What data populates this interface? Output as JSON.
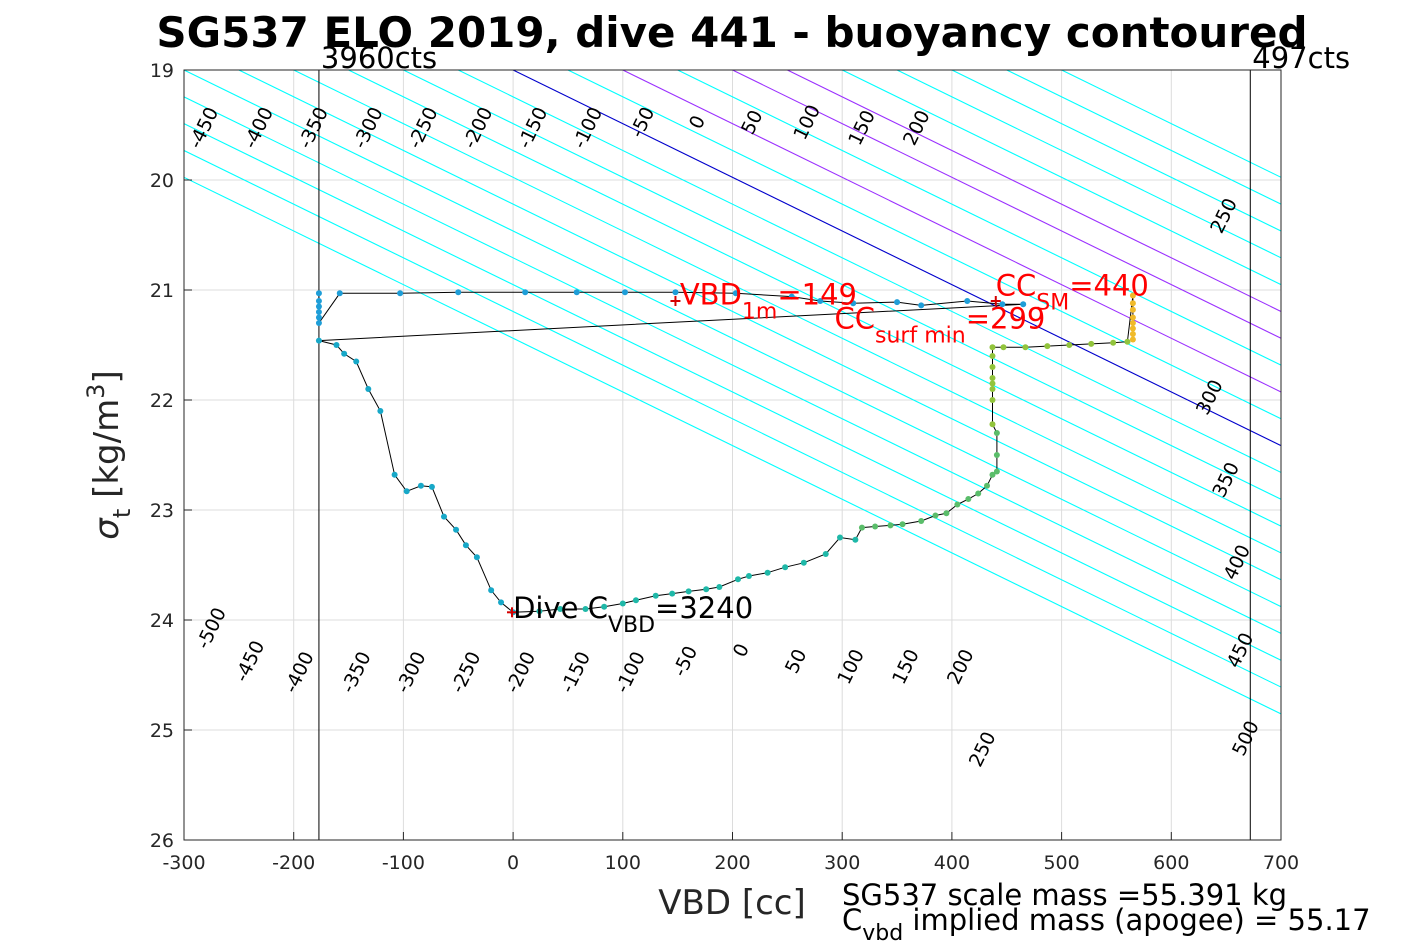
{
  "chart_data": {
    "type": "scatter",
    "title": "SG537 ELO 2019, dive 441 - buoyancy contoured",
    "xlabel": "VBD [cc]",
    "ylabel": {
      "base": "σ",
      "sub": "t",
      "unit_pre": " [kg/m",
      "unit_sup": "3",
      "unit_post": "]"
    },
    "xlim": [
      -300,
      700
    ],
    "ylim": [
      19,
      26
    ],
    "y_reversed": true,
    "grid": true,
    "xticks": [
      "-300",
      "-200",
      "-100",
      "0",
      "100",
      "200",
      "300",
      "400",
      "500",
      "600",
      "700"
    ],
    "yticks": [
      "19",
      "20",
      "21",
      "22",
      "23",
      "24",
      "25",
      "26"
    ],
    "vlines": [
      {
        "x": -177,
        "label": "3960cts",
        "color": "#000000"
      },
      {
        "x": 672,
        "label": "497cts",
        "color": "#000000"
      }
    ],
    "contour_slope_vbd_per_sigma": 205,
    "contours": [
      {
        "b": -500,
        "label": "-500",
        "color": "#00ffff",
        "label_at": [
          -270,
          24.1
        ]
      },
      {
        "b": -450,
        "label": "-450",
        "color": "#00ffff",
        "label_at": [
          -235,
          24.4
        ]
      },
      {
        "b": -400,
        "label": "-400",
        "color": "#00ffff",
        "label_at": [
          -190,
          24.5
        ]
      },
      {
        "b": -350,
        "label": "-350",
        "color": "#00ffff",
        "label_at": [
          -138,
          24.5
        ]
      },
      {
        "b": -300,
        "label": "-300",
        "color": "#00ffff",
        "label_at": [
          -88,
          24.5
        ]
      },
      {
        "b": -250,
        "label": "-250",
        "color": "#00ffff",
        "label_at": [
          -38,
          24.5
        ]
      },
      {
        "b": -200,
        "label": "-200",
        "color": "#00ffff",
        "label_at": [
          12,
          24.5
        ]
      },
      {
        "b": -150,
        "label": "-150",
        "color": "#00ffff",
        "label_at": [
          62,
          24.5
        ]
      },
      {
        "b": -100,
        "label": "-100",
        "color": "#00ffff",
        "label_at": [
          112,
          24.5
        ]
      },
      {
        "b": -50,
        "label": "-50",
        "color": "#00ffff",
        "label_at": [
          162,
          24.4
        ]
      },
      {
        "b": 0,
        "label": "0",
        "color": "#0000cc",
        "label_at": [
          213,
          24.3
        ]
      },
      {
        "b": 50,
        "label": "50",
        "color": "#00ffff",
        "label_at": [
          263,
          24.4
        ]
      },
      {
        "b": 100,
        "label": "100",
        "color": "#9b30ff",
        "label_at": [
          313,
          24.45
        ]
      },
      {
        "b": 150,
        "label": "150",
        "color": "#00ffff",
        "label_at": [
          363,
          24.45
        ]
      },
      {
        "b": 200,
        "label": "200",
        "color": "#9b30ff",
        "label_at": [
          413,
          24.45
        ]
      },
      {
        "b": 250,
        "label": "250",
        "color": "#9b30ff",
        "label_at": [
          433,
          25.2
        ]
      },
      {
        "b": 300,
        "label": "300",
        "color": "#00ffff",
        "label_at": [
          640,
          22.0
        ]
      },
      {
        "b": 350,
        "label": "350",
        "color": "#00ffff",
        "label_at": [
          655,
          22.75
        ]
      },
      {
        "b": 400,
        "label": "400",
        "color": "#00ffff",
        "label_at": [
          665,
          23.5
        ]
      },
      {
        "b": 450,
        "label": "450",
        "color": "#00ffff",
        "label_at": [
          668,
          24.3
        ]
      },
      {
        "b": 500,
        "label": "500",
        "color": "#00ffff",
        "label_at": [
          673,
          25.1
        ]
      }
    ],
    "top_contour_labels": [
      {
        "label": "-450",
        "at": [
          -277,
          19.55
        ]
      },
      {
        "label": "-400",
        "at": [
          -227,
          19.55
        ]
      },
      {
        "label": "-350",
        "at": [
          -177,
          19.55
        ]
      },
      {
        "label": "-300",
        "at": [
          -127,
          19.55
        ]
      },
      {
        "label": "-250",
        "at": [
          -77,
          19.55
        ]
      },
      {
        "label": "-200",
        "at": [
          -27,
          19.55
        ]
      },
      {
        "label": "-150",
        "at": [
          23,
          19.55
        ]
      },
      {
        "label": "-100",
        "at": [
          73,
          19.55
        ]
      },
      {
        "label": "-50",
        "at": [
          123,
          19.5
        ]
      },
      {
        "label": "0",
        "at": [
          173,
          19.5
        ]
      },
      {
        "label": "50",
        "at": [
          223,
          19.5
        ]
      },
      {
        "label": "100",
        "at": [
          273,
          19.5
        ]
      },
      {
        "label": "150",
        "at": [
          323,
          19.55
        ]
      },
      {
        "label": "200",
        "at": [
          373,
          19.55
        ]
      },
      {
        "label": "250",
        "at": [
          653,
          20.35
        ]
      }
    ],
    "series": [
      {
        "color": "#1e9ed8",
        "points": [
          [
            -177,
            21.03
          ],
          [
            -177,
            21.1
          ],
          [
            -177,
            21.15
          ],
          [
            -177,
            21.2
          ],
          [
            -177,
            21.25
          ],
          [
            -177,
            21.3
          ],
          [
            -158,
            21.03
          ],
          [
            -103,
            21.03
          ],
          [
            -50,
            21.02
          ],
          [
            11,
            21.02
          ],
          [
            58,
            21.02
          ],
          [
            102,
            21.02
          ],
          [
            148,
            21.02
          ],
          [
            203,
            21.03
          ],
          [
            254,
            21.06
          ],
          [
            280,
            21.1
          ],
          [
            310,
            21.12
          ],
          [
            350,
            21.11
          ],
          [
            372,
            21.14
          ],
          [
            414,
            21.1
          ],
          [
            446,
            21.13
          ],
          [
            465,
            21.13
          ]
        ]
      },
      {
        "color": "#17a8c8",
        "points": [
          [
            -177,
            21.46
          ],
          [
            -161,
            21.5
          ],
          [
            -154,
            21.58
          ],
          [
            -143,
            21.65
          ],
          [
            -132,
            21.9
          ],
          [
            -121,
            22.1
          ],
          [
            -108,
            22.68
          ],
          [
            -97,
            22.83
          ],
          [
            -84,
            22.78
          ],
          [
            -74,
            22.79
          ],
          [
            -63,
            23.06
          ],
          [
            -52,
            23.18
          ],
          [
            -43,
            23.32
          ],
          [
            -33,
            23.43
          ],
          [
            -20,
            23.73
          ],
          [
            -11,
            23.84
          ],
          [
            0,
            23.93
          ]
        ]
      },
      {
        "color": "#1fb8a8",
        "points": [
          [
            24,
            23.92
          ],
          [
            43,
            23.9
          ],
          [
            66,
            23.9
          ],
          [
            83,
            23.88
          ],
          [
            100,
            23.85
          ],
          [
            112,
            23.82
          ],
          [
            130,
            23.78
          ],
          [
            145,
            23.76
          ],
          [
            160,
            23.74
          ],
          [
            176,
            23.72
          ],
          [
            188,
            23.7
          ],
          [
            205,
            23.63
          ],
          [
            215,
            23.6
          ],
          [
            232,
            23.57
          ],
          [
            248,
            23.52
          ],
          [
            265,
            23.48
          ],
          [
            285,
            23.4
          ],
          [
            298,
            23.25
          ],
          [
            312,
            23.27
          ]
        ]
      },
      {
        "color": "#5abd6a",
        "points": [
          [
            318,
            23.16
          ],
          [
            330,
            23.15
          ],
          [
            344,
            23.14
          ],
          [
            355,
            23.13
          ],
          [
            372,
            23.1
          ],
          [
            385,
            23.05
          ],
          [
            395,
            23.03
          ],
          [
            405,
            22.95
          ],
          [
            415,
            22.9
          ],
          [
            424,
            22.85
          ],
          [
            432,
            22.78
          ],
          [
            437,
            22.68
          ],
          [
            441,
            22.65
          ],
          [
            441,
            22.5
          ],
          [
            441,
            22.3
          ]
        ]
      },
      {
        "color": "#92c43c",
        "points": [
          [
            437,
            22.22
          ],
          [
            437,
            22.0
          ],
          [
            437,
            21.9
          ],
          [
            437,
            21.85
          ],
          [
            437,
            21.8
          ],
          [
            437,
            21.7
          ],
          [
            437,
            21.6
          ],
          [
            437,
            21.52
          ],
          [
            447,
            21.52
          ],
          [
            467,
            21.52
          ],
          [
            487,
            21.51
          ],
          [
            507,
            21.5
          ],
          [
            527,
            21.49
          ],
          [
            547,
            21.48
          ],
          [
            560,
            21.47
          ]
        ]
      },
      {
        "color": "#f0ba2a",
        "points": [
          [
            565,
            21.05
          ],
          [
            565,
            21.12
          ],
          [
            565,
            21.18
          ],
          [
            565,
            21.25
          ],
          [
            565,
            21.3
          ],
          [
            565,
            21.35
          ],
          [
            565,
            21.4
          ],
          [
            565,
            21.45
          ]
        ]
      }
    ],
    "markers": [
      {
        "x": -1,
        "y": 23.93,
        "color": "#d40000",
        "symbol": "+"
      },
      {
        "x": 148,
        "y": 21.1,
        "color": "#d40000",
        "symbol": "+"
      },
      {
        "x": 440,
        "y": 21.1,
        "color": "#d40000",
        "symbol": "+"
      }
    ],
    "annotations": [
      {
        "at": [
          0,
          23.98
        ],
        "color": "#000000",
        "pre": "Dive C",
        "sub": "VBD",
        "post": "=3240"
      },
      {
        "at": [
          152,
          21.13
        ],
        "color": "#ff0000",
        "pre": "VBD",
        "sub": "1m",
        "post": "=149"
      },
      {
        "at": [
          293,
          21.35
        ],
        "color": "#ff0000",
        "pre": "CC",
        "sub": "surf min",
        "post": "=299"
      },
      {
        "at": [
          440,
          21.05
        ],
        "color": "#ff0000",
        "pre": "CC",
        "sub": "SM",
        "post": "=440"
      }
    ]
  },
  "footer": {
    "line1": "SG537 scale mass =55.391 kg",
    "line2_base": "C",
    "line2_sub": "vbd",
    "line2_text": " implied mass (apogee) = 55.17"
  }
}
